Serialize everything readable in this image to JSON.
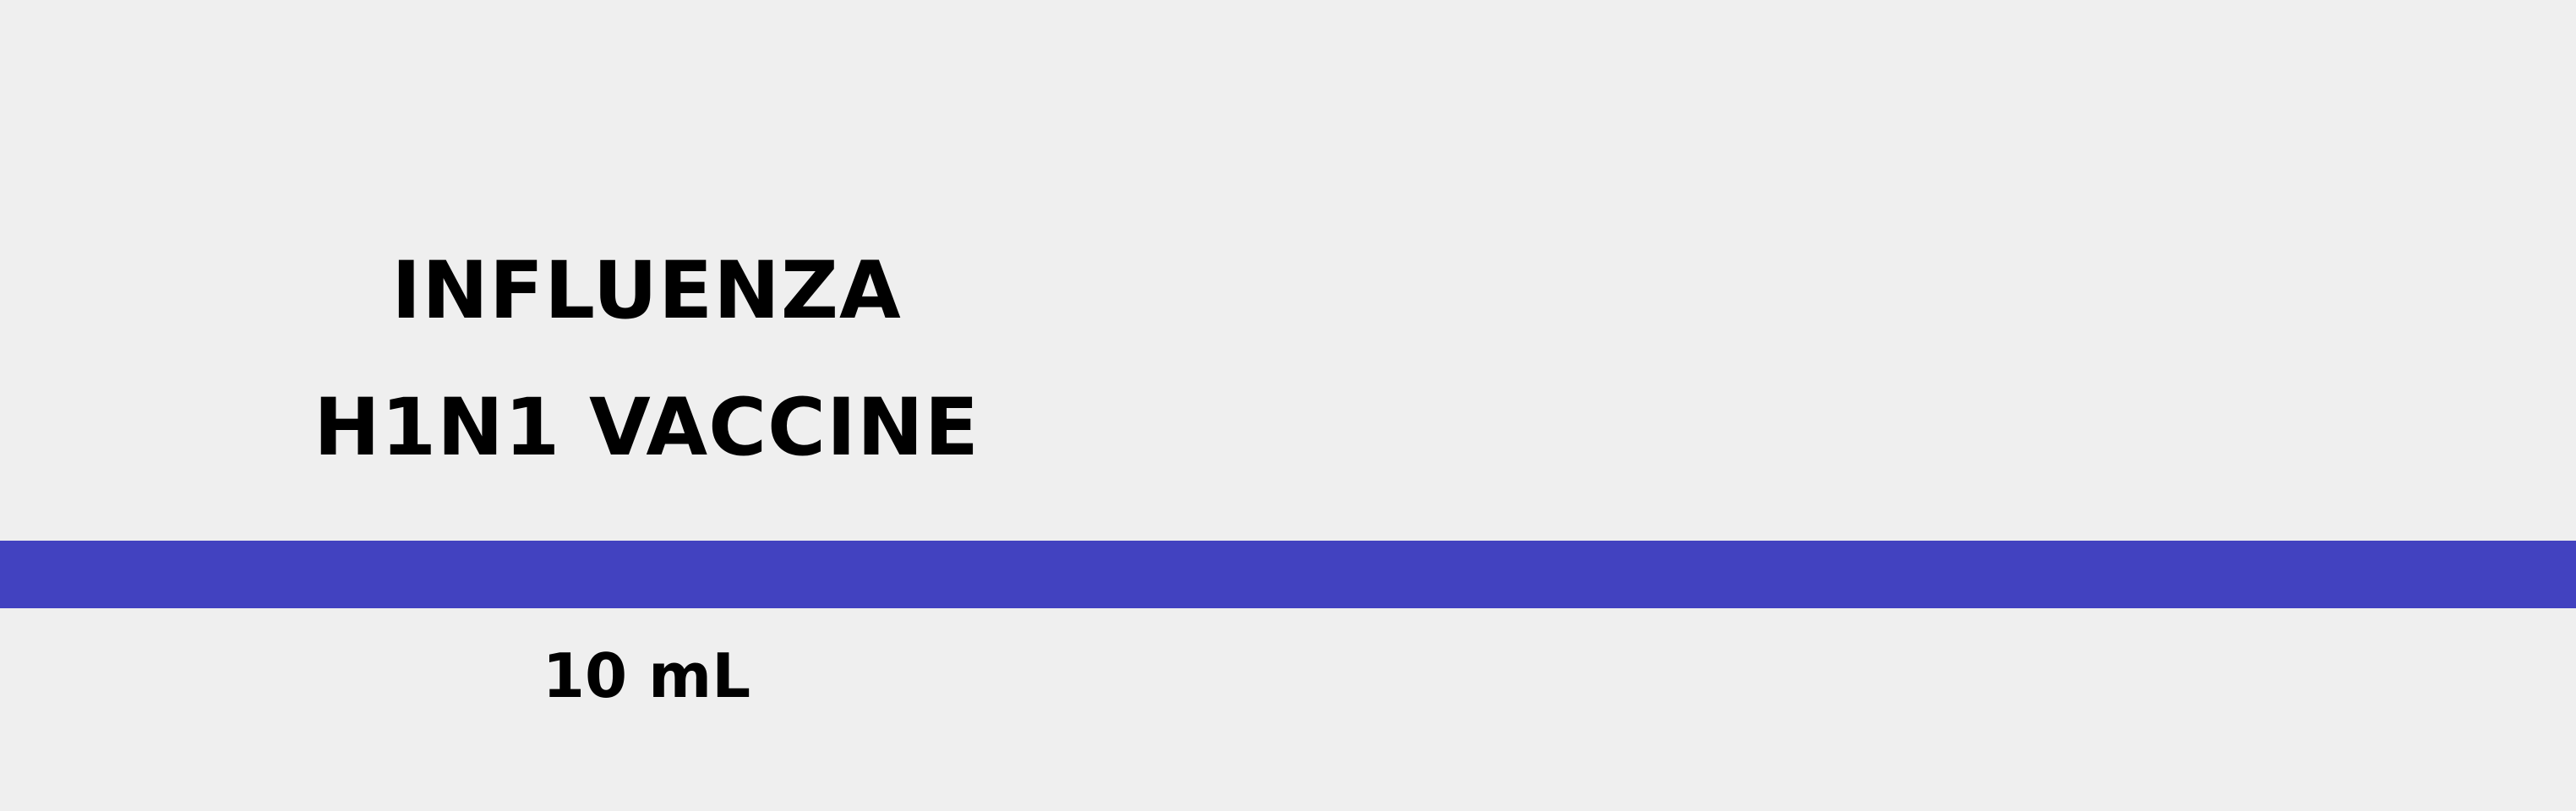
{
  "label": {
    "title": "INFLUENZA H1N1 VACCINE",
    "volume": "10 mL",
    "band_color": "#4242c0"
  }
}
